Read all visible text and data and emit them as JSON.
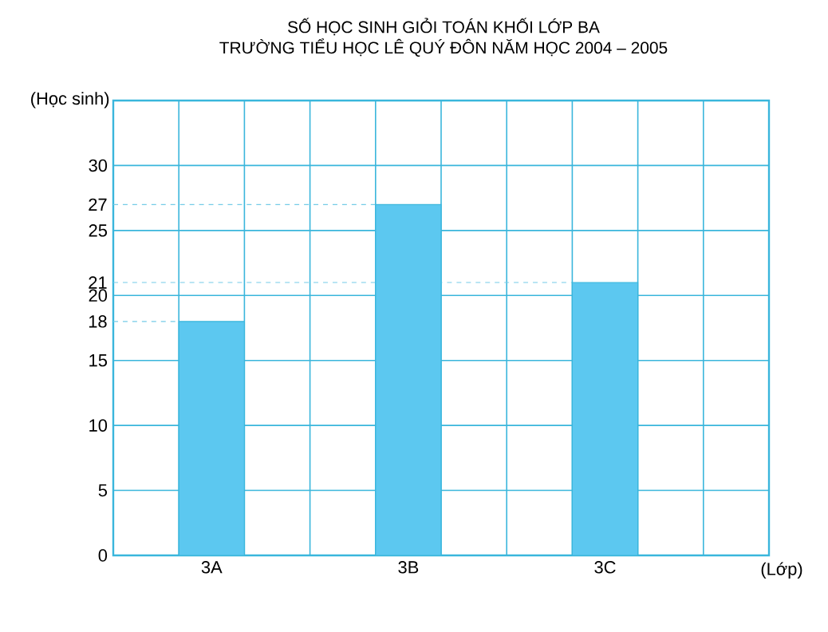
{
  "chart_data": {
    "type": "bar",
    "title": "SỐ HỌC SINH GIỎI TOÁN KHỐI LỚP BA",
    "subtitle": "TRƯỜNG TIỂU HỌC LÊ QUÝ ĐÔN NĂM HỌC 2004 – 2005",
    "xlabel": "(Lớp)",
    "ylabel": "(Học sinh)",
    "categories": [
      "3A",
      "3B",
      "3C"
    ],
    "values": [
      18,
      27,
      21
    ],
    "color": "#5cc8f0",
    "ylim": [
      0,
      35
    ],
    "yticks": [
      0,
      5,
      10,
      15,
      20,
      25,
      30
    ],
    "grid": true,
    "ref_lines": [
      {
        "axis": "y",
        "value": 18,
        "label": "18",
        "line_style": "dashed"
      },
      {
        "axis": "y",
        "value": 21,
        "label": "21",
        "line_style": "dashed"
      },
      {
        "axis": "y",
        "value": 27,
        "label": "27",
        "line_style": "dashed"
      }
    ]
  }
}
